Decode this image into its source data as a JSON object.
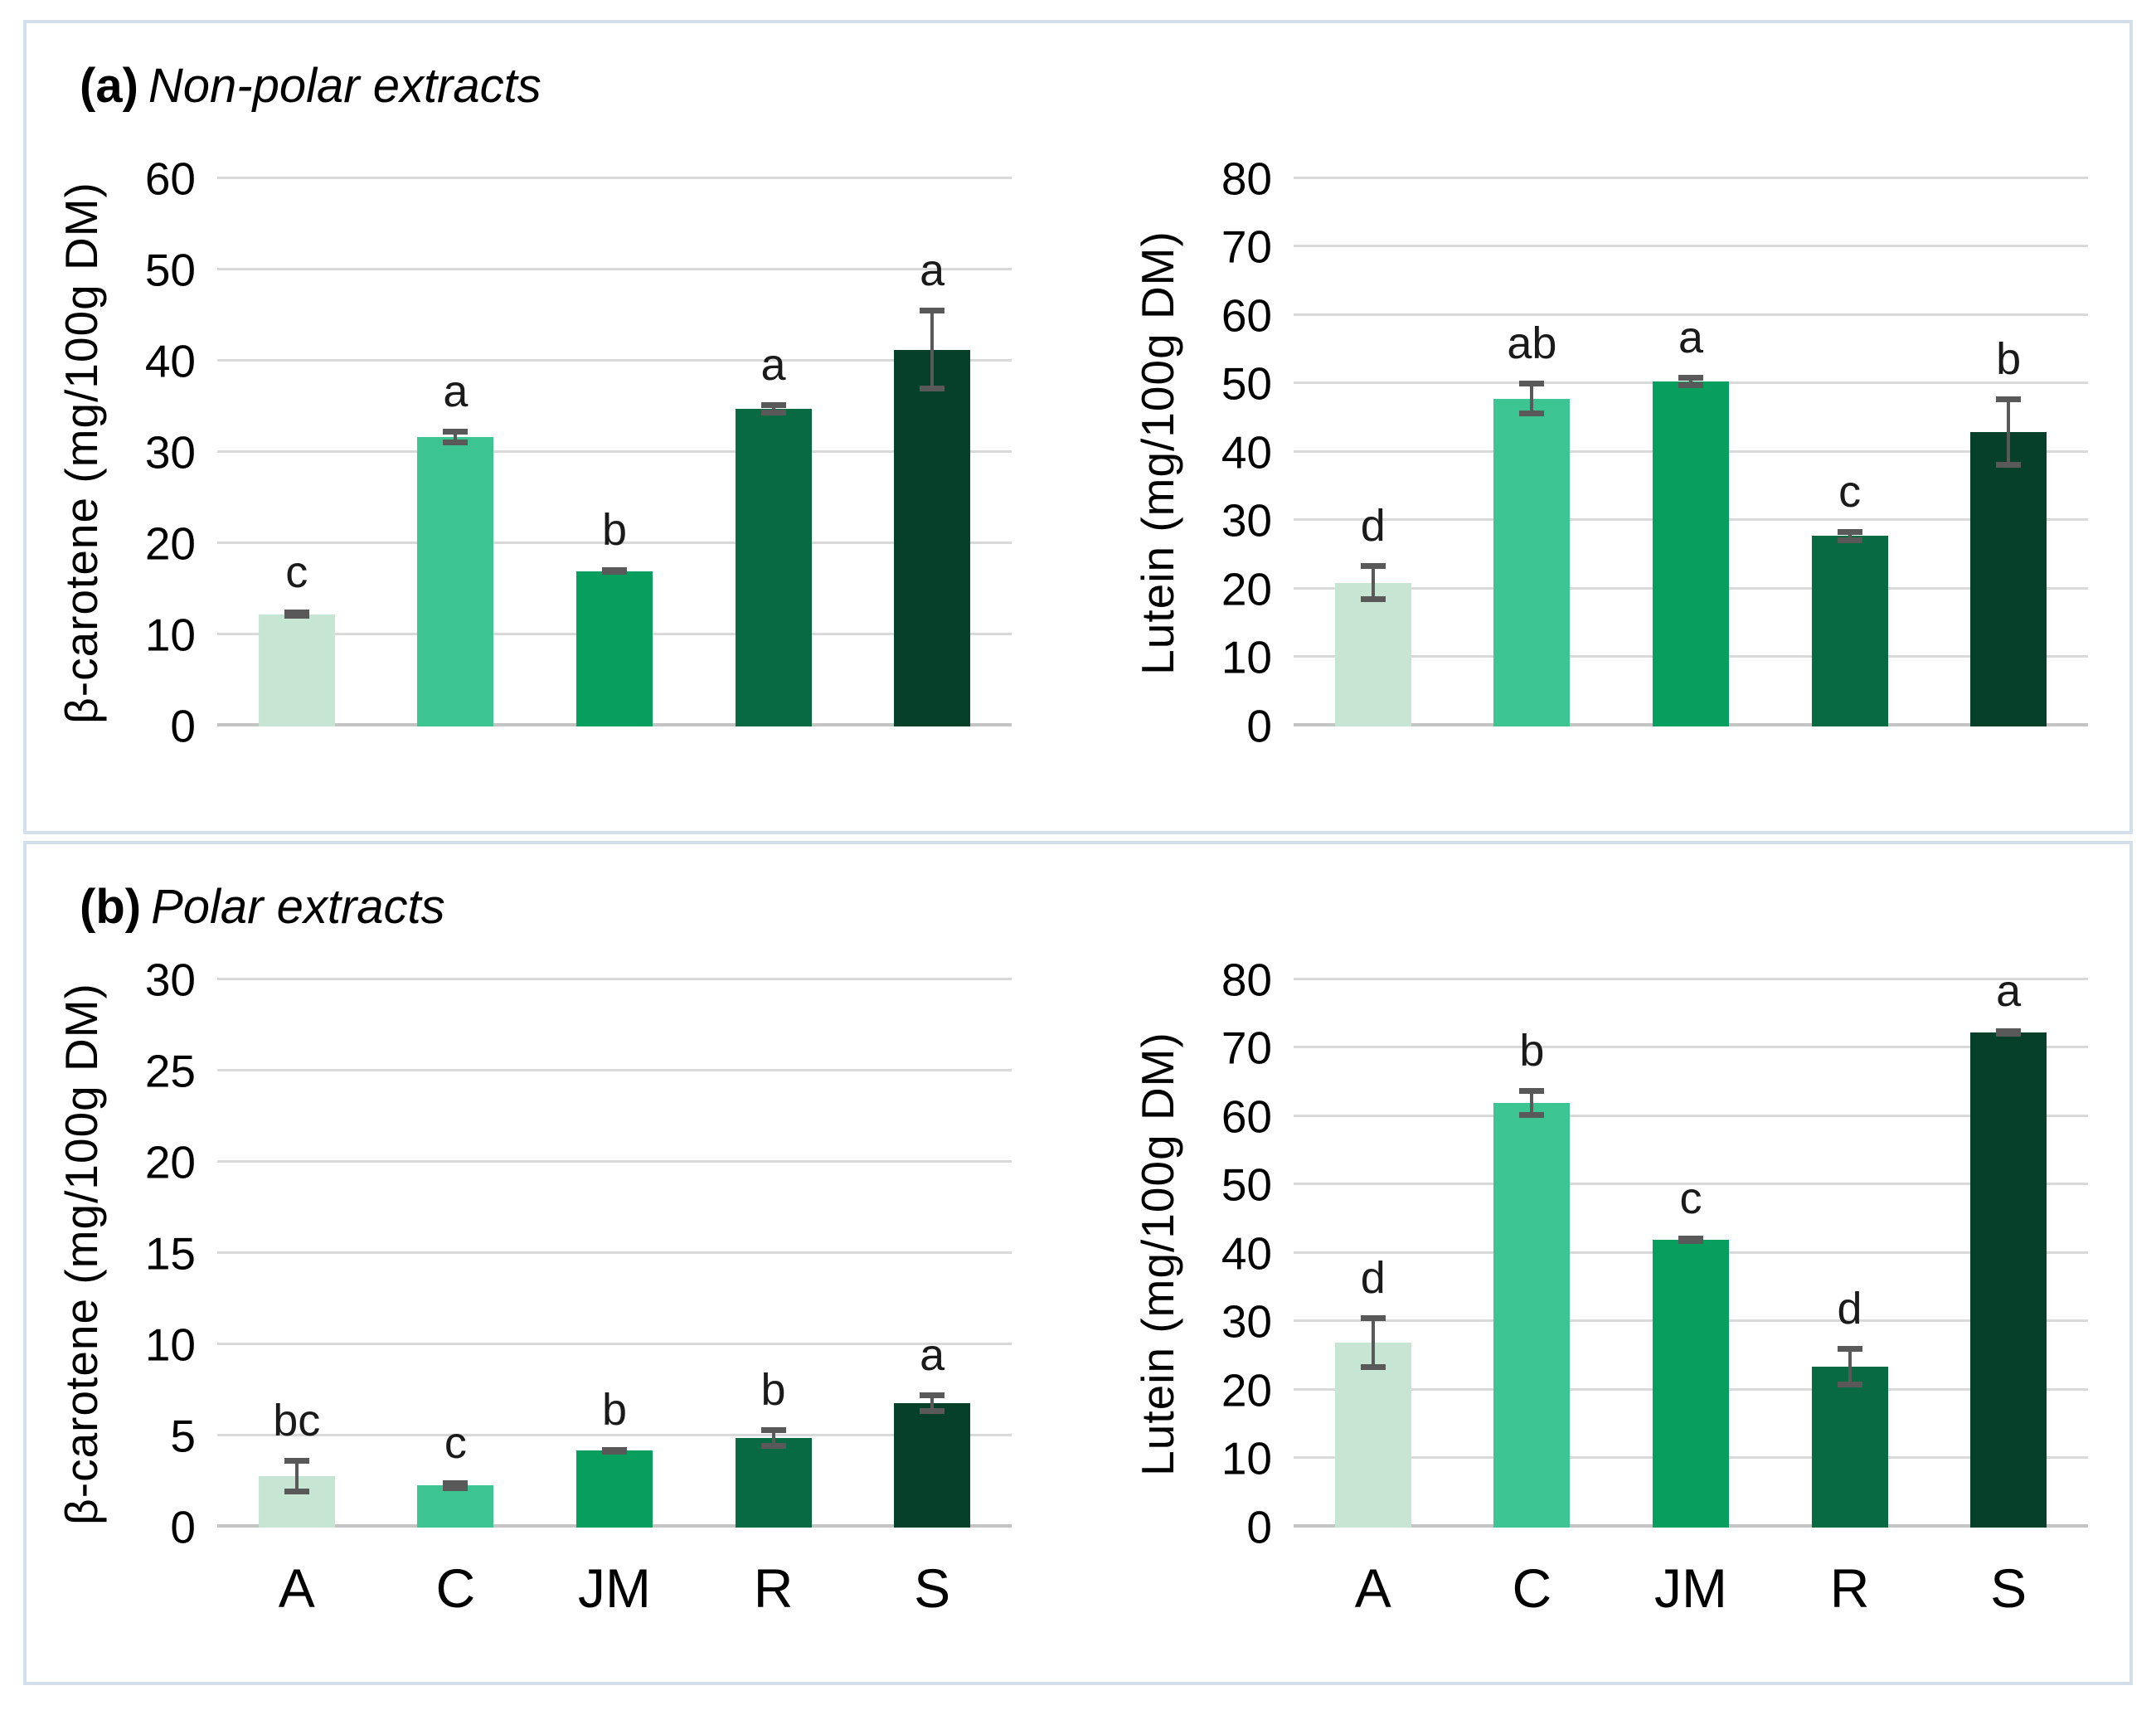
{
  "figure": {
    "panels": [
      {
        "id": "a",
        "title_prefix": "(a)",
        "title": "Non-polar extracts"
      },
      {
        "id": "b",
        "title_prefix": "(b)",
        "title": "Polar extracts"
      }
    ]
  },
  "colors": {
    "background": "#ffffff",
    "panel_border": "#d4dfec",
    "gridline": "#d9d9d9",
    "baseline": "#c4c4c4",
    "error_bar": "#595959",
    "bar_palette": [
      "#c6e5d3",
      "#3cc492",
      "#089e5e",
      "#076a42",
      "#06402a"
    ]
  },
  "chart_data": [
    {
      "id": "nonpolar-beta-carotene",
      "type": "bar",
      "panel": "a",
      "ylabel": "β-carotene (mg/100g DM)",
      "xlabel": "",
      "ylim": [
        0,
        60
      ],
      "yticks": [
        0,
        10,
        20,
        30,
        40,
        50,
        60
      ],
      "grid": true,
      "legend": "none",
      "categories": [
        "A",
        "C",
        "JM",
        "R",
        "S"
      ],
      "values": [
        12.3,
        31.7,
        17.0,
        34.8,
        41.3
      ],
      "errors": [
        0.5,
        0.9,
        0.4,
        0.7,
        4.6
      ],
      "sig_letters": [
        "c",
        "a",
        "b",
        "a",
        "a"
      ],
      "show_x_labels": false
    },
    {
      "id": "nonpolar-lutein",
      "type": "bar",
      "panel": "a",
      "ylabel": "Lutein (mg/100g DM)",
      "xlabel": "",
      "ylim": [
        0,
        80
      ],
      "yticks": [
        0,
        10,
        20,
        30,
        40,
        50,
        60,
        70,
        80
      ],
      "grid": true,
      "legend": "none",
      "categories": [
        "A",
        "C",
        "JM",
        "R",
        "S"
      ],
      "values": [
        21.0,
        47.9,
        50.4,
        27.8,
        43.0
      ],
      "errors": [
        2.8,
        2.6,
        1.0,
        1.0,
        5.2
      ],
      "sig_letters": [
        "d",
        "ab",
        "a",
        "c",
        "b"
      ],
      "show_x_labels": false
    },
    {
      "id": "polar-beta-carotene",
      "type": "bar",
      "panel": "b",
      "ylabel": "β-carotene (mg/100g DM)",
      "xlabel": "",
      "ylim": [
        0,
        30
      ],
      "yticks": [
        0,
        5,
        10,
        15,
        20,
        25,
        30
      ],
      "grid": true,
      "legend": "none",
      "categories": [
        "A",
        "C",
        "JM",
        "R",
        "S"
      ],
      "values": [
        2.8,
        2.3,
        4.2,
        4.9,
        6.8
      ],
      "errors": [
        1.0,
        0.3,
        0.2,
        0.6,
        0.6
      ],
      "sig_letters": [
        "bc",
        "c",
        "b",
        "b",
        "a"
      ],
      "show_x_labels": true
    },
    {
      "id": "polar-lutein",
      "type": "bar",
      "panel": "b",
      "ylabel": "Lutein (mg/100g DM)",
      "xlabel": "",
      "ylim": [
        0,
        80
      ],
      "yticks": [
        0,
        10,
        20,
        30,
        40,
        50,
        60,
        70,
        80
      ],
      "grid": true,
      "legend": "none",
      "categories": [
        "A",
        "C",
        "JM",
        "R",
        "S"
      ],
      "values": [
        27.0,
        62.0,
        42.0,
        23.5,
        72.3
      ],
      "errors": [
        4.0,
        2.2,
        0.6,
        3.0,
        0.6
      ],
      "sig_letters": [
        "d",
        "b",
        "c",
        "d",
        "a"
      ],
      "show_x_labels": true
    }
  ]
}
